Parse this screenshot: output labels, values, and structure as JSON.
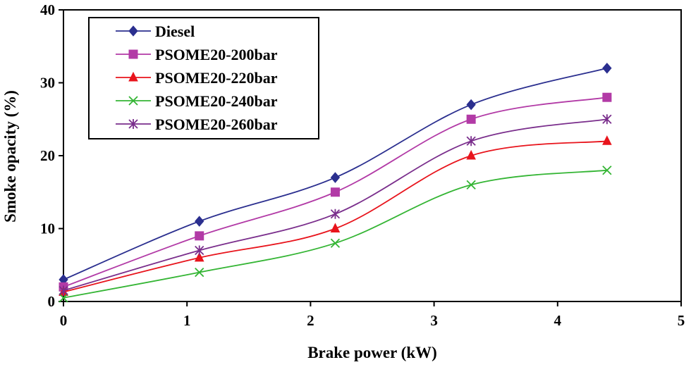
{
  "chart_data": {
    "type": "line",
    "xlabel": "Brake power (kW)",
    "ylabel": "Smoke opacity (%)",
    "xlim": [
      0,
      5
    ],
    "ylim": [
      0,
      40
    ],
    "xticks": [
      "0",
      "1",
      "2",
      "3",
      "4",
      "5"
    ],
    "yticks": [
      "0",
      "10",
      "20",
      "30",
      "40"
    ],
    "grid": false,
    "legend_position": "top-left",
    "smooth": true,
    "x": [
      0,
      1.1,
      2.2,
      3.3,
      4.4
    ],
    "series": [
      {
        "name": "Diesel",
        "values": [
          3,
          11,
          17,
          27,
          32
        ],
        "color": "#2b2f8f",
        "marker": "diamond"
      },
      {
        "name": "PSOME20-200bar",
        "values": [
          2,
          9,
          15,
          25,
          28
        ],
        "color": "#b23aa6",
        "marker": "square"
      },
      {
        "name": "PSOME20-220bar",
        "values": [
          1.3,
          6,
          10,
          20,
          22
        ],
        "color": "#e8141c",
        "marker": "triangle"
      },
      {
        "name": "PSOME20-240bar",
        "values": [
          0.5,
          4,
          8,
          16,
          18
        ],
        "color": "#34b534",
        "marker": "x"
      },
      {
        "name": "PSOME20-260bar",
        "values": [
          1.5,
          7,
          12,
          22,
          25
        ],
        "color": "#7a2e8c",
        "marker": "star"
      }
    ]
  }
}
